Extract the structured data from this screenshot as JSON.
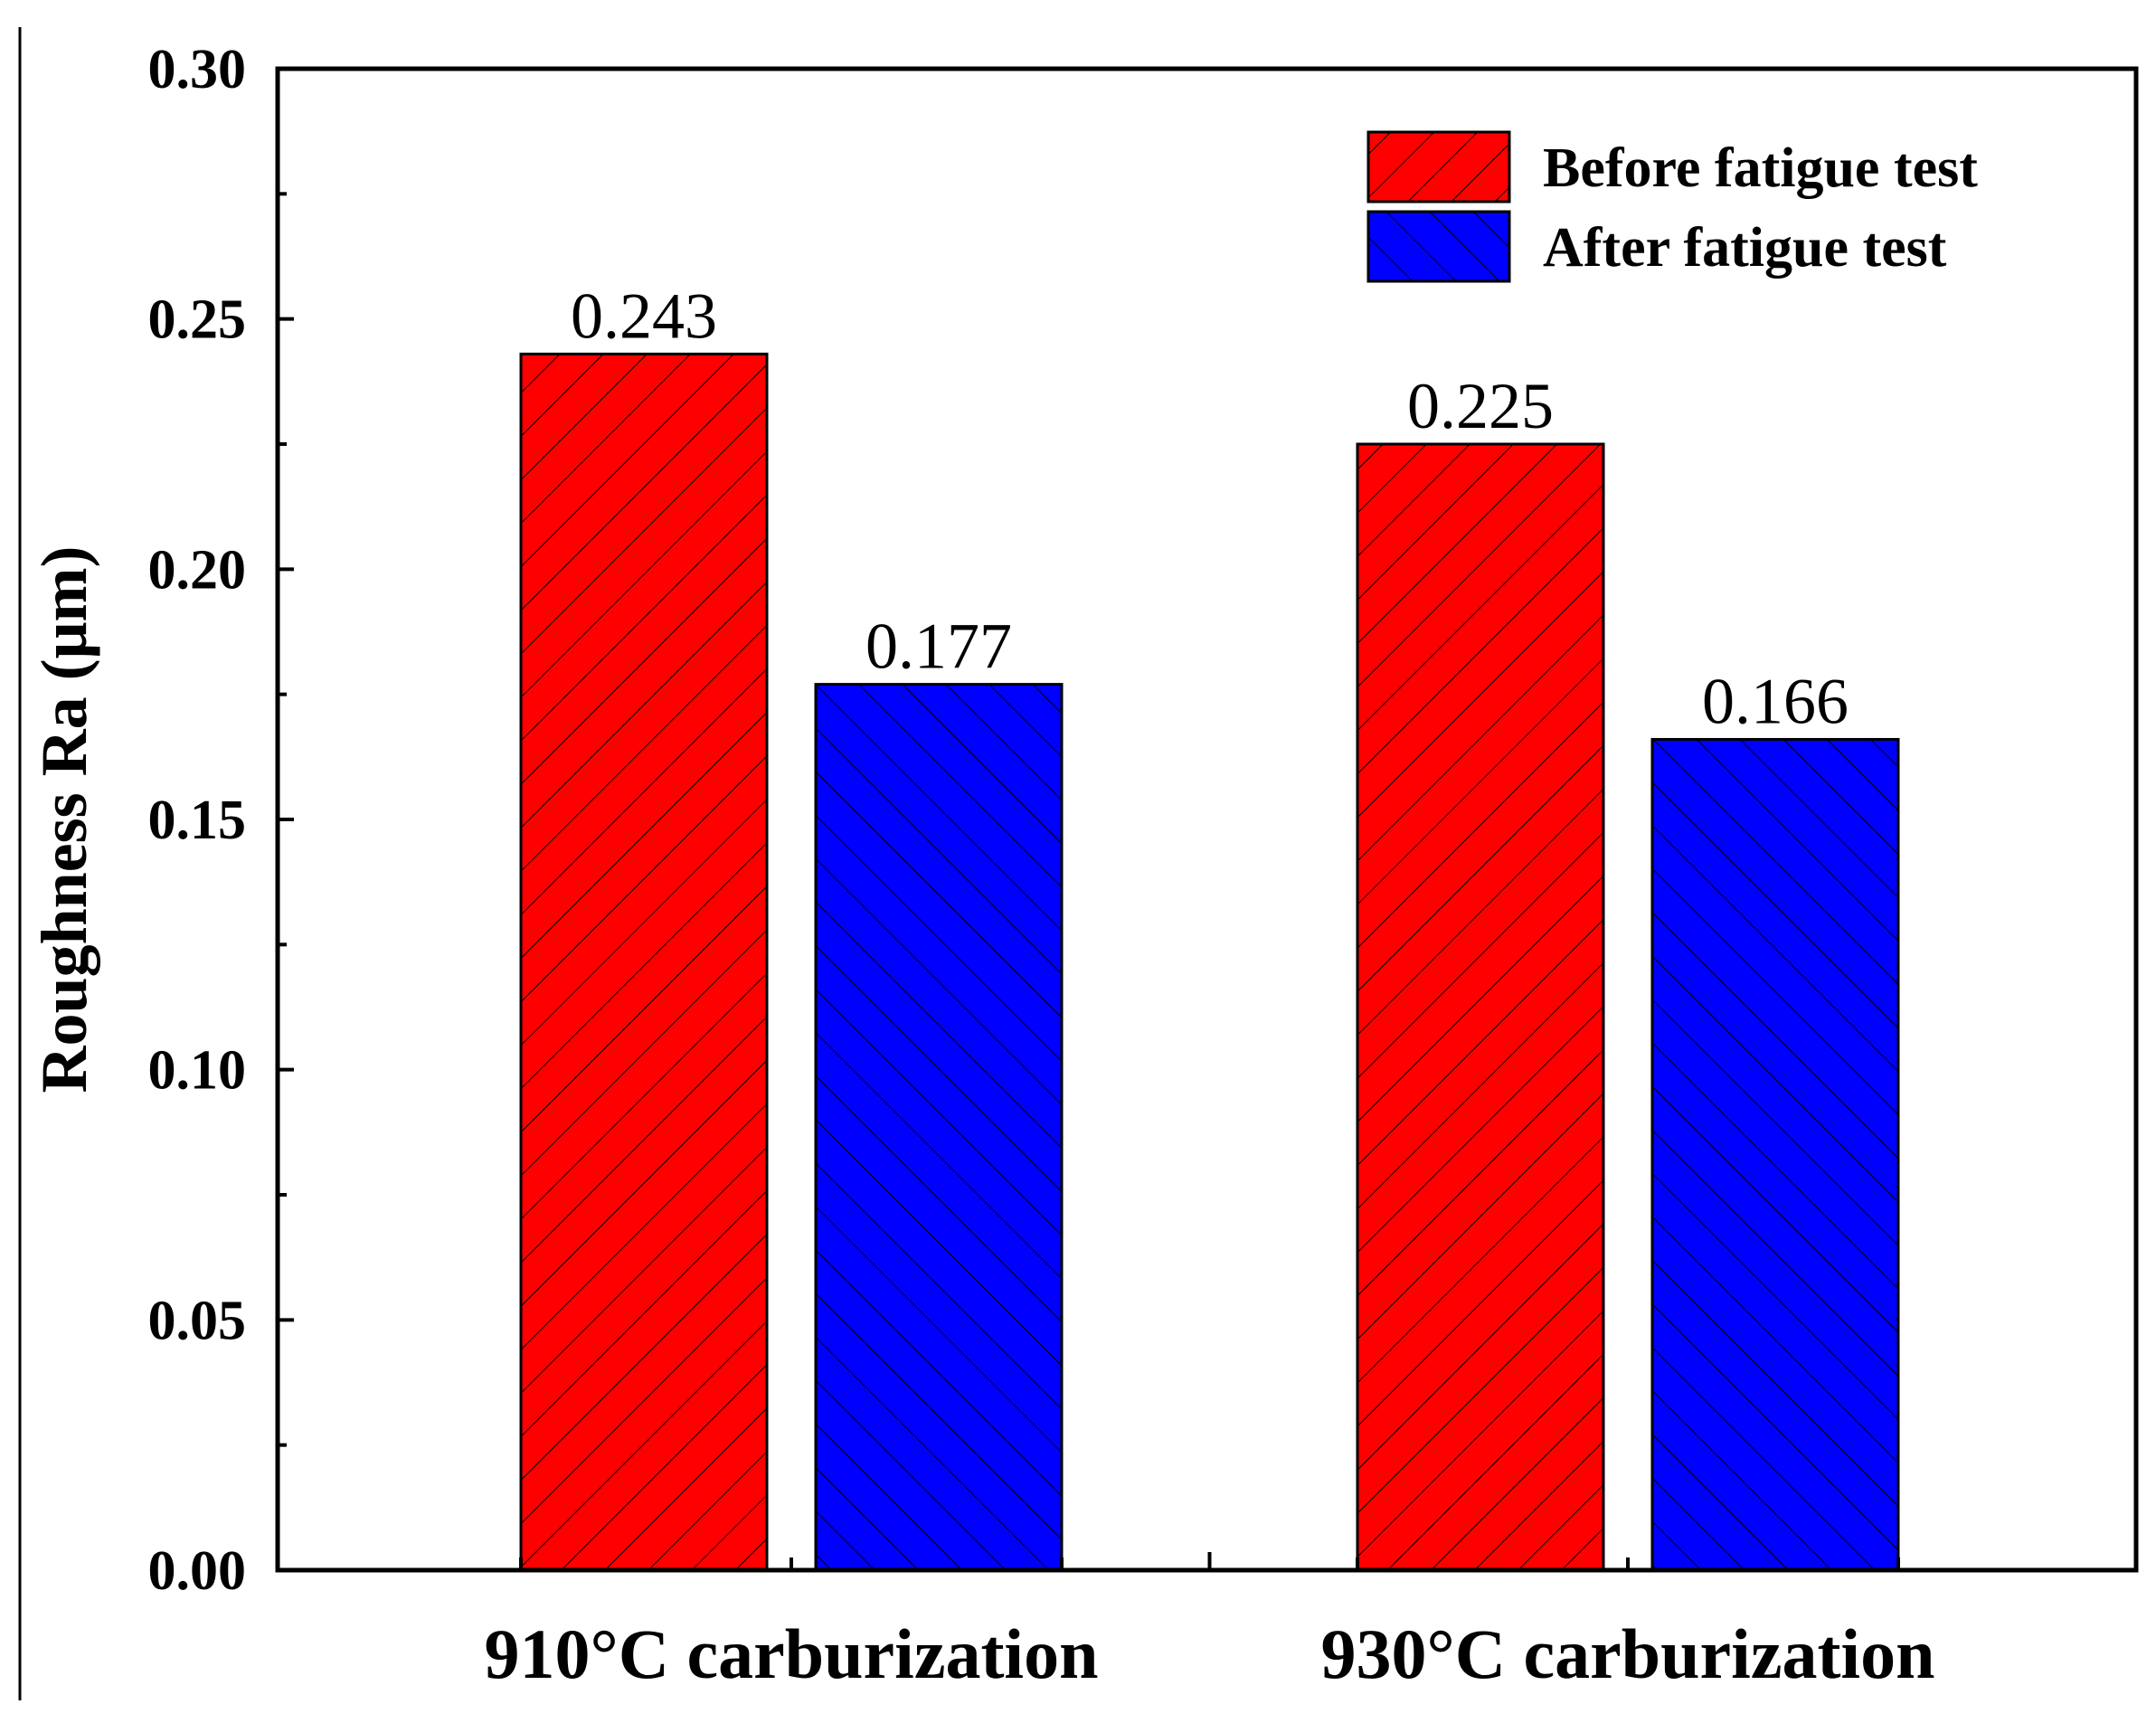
{
  "chart_data": {
    "type": "bar",
    "title": "",
    "xlabel": "",
    "ylabel": "Roughness Ra (μm)",
    "ylim": [
      0,
      0.3
    ],
    "yticks": [
      "0.00",
      "0.05",
      "0.10",
      "0.15",
      "0.20",
      "0.25",
      "0.30"
    ],
    "categories": [
      "910°C carburization",
      "930°C carburization"
    ],
    "series": [
      {
        "name": "Before fatigue test",
        "color": "#ff0000",
        "hatch": "forward-diagonal",
        "values": [
          0.243,
          0.225
        ],
        "labels": [
          "0.243",
          "0.225"
        ]
      },
      {
        "name": "After fatigue test",
        "color": "#0000ff",
        "hatch": "backward-diagonal",
        "values": [
          0.177,
          0.166
        ],
        "labels": [
          "0.177",
          "0.166"
        ]
      }
    ],
    "legend": "top-right",
    "grid": false
  }
}
